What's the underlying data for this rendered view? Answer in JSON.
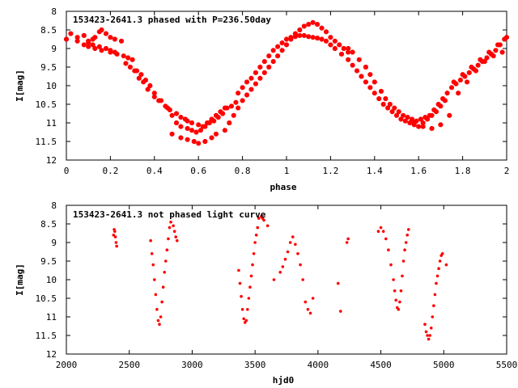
{
  "colors": {
    "series": "#ff0000",
    "axis": "#000000",
    "background": "#ffffff"
  },
  "chart_data": [
    {
      "type": "scatter",
      "title": "153423-2641.3 phased with P=236.50day",
      "xlabel": "phase",
      "ylabel": "I[mag]",
      "xlim": [
        0,
        2
      ],
      "ylim": [
        8,
        12
      ],
      "y_inverted": true,
      "xticks": [
        0,
        0.2,
        0.4,
        0.6,
        0.8,
        1,
        1.2,
        1.4,
        1.6,
        1.8,
        2
      ],
      "xtick_labels": [
        "0",
        "0.2",
        "0.4",
        "0.6",
        "0.8",
        "1",
        "1.2",
        "1.4",
        "1.6",
        "1.8",
        "2"
      ],
      "yticks": [
        8,
        8.5,
        9,
        9.5,
        10,
        10.5,
        11,
        11.5,
        12
      ],
      "ytick_labels": [
        "8",
        "8.5",
        "9",
        "9.5",
        "10",
        "10.5",
        "11",
        "11.5",
        "12"
      ],
      "grid": false,
      "marker": "filled-octagon",
      "series": [
        {
          "x": [
            0.0,
            0.02,
            0.05,
            0.08,
            0.1,
            0.12,
            0.13,
            0.15,
            0.16,
            0.18,
            0.2,
            0.22,
            0.25,
            0.05,
            0.08,
            0.1,
            0.13,
            0.16,
            0.2,
            0.23,
            0.26,
            0.28,
            0.3,
            0.1,
            0.12,
            0.15,
            0.18,
            0.2,
            0.22,
            0.27,
            0.29,
            0.31,
            0.33,
            0.35,
            0.37,
            0.4,
            0.42,
            0.45,
            0.47,
            0.5,
            0.52,
            0.54,
            0.55,
            0.57,
            0.6,
            0.62,
            0.64,
            0.66,
            0.68,
            0.7,
            0.72,
            0.32,
            0.34,
            0.36,
            0.38,
            0.4,
            0.43,
            0.46,
            0.48,
            0.5,
            0.52,
            0.55,
            0.57,
            0.59,
            0.61,
            0.63,
            0.65,
            0.67,
            0.69,
            0.71,
            0.73,
            0.75,
            0.77,
            0.48,
            0.52,
            0.55,
            0.58,
            0.6,
            0.63,
            0.66,
            0.68,
            0.72,
            0.74,
            0.76,
            0.78,
            0.8,
            0.82,
            0.84,
            0.86,
            0.88,
            0.9,
            0.92,
            0.94,
            0.96,
            0.98,
            1.0,
            1.02,
            1.04,
            1.06,
            1.08,
            1.1,
            1.12,
            1.14,
            1.16,
            1.18,
            1.2,
            1.22,
            1.24,
            1.26,
            1.28,
            0.78,
            0.8,
            0.82,
            0.84,
            0.86,
            0.88,
            0.9,
            0.92,
            0.94,
            0.96,
            0.98,
            1.0,
            1.02,
            1.04,
            1.06,
            1.08,
            1.1,
            1.12,
            1.14,
            1.16,
            1.18,
            1.2,
            1.22,
            1.25,
            1.28,
            1.3,
            1.32,
            1.34,
            1.36,
            1.38,
            1.4,
            1.42,
            1.44,
            1.46,
            1.48,
            1.5,
            1.52,
            1.54,
            1.56,
            1.58,
            1.6,
            1.62,
            1.64,
            1.66,
            1.68,
            1.7,
            1.72,
            1.28,
            1.3,
            1.33,
            1.36,
            1.38,
            1.4,
            1.43,
            1.45,
            1.47,
            1.49,
            1.51,
            1.53,
            1.55,
            1.57,
            1.59,
            1.61,
            1.63,
            1.65,
            1.67,
            1.69,
            1.71,
            1.73,
            1.75,
            1.77,
            1.79,
            1.81,
            1.83,
            1.85,
            1.87,
            1.89,
            1.91,
            1.93,
            1.95,
            1.97,
            1.99,
            1.58,
            1.62,
            1.66,
            1.7,
            1.74,
            1.78,
            1.82,
            1.86,
            1.9,
            1.94,
            1.98,
            1.76,
            1.8,
            1.84,
            1.88,
            1.92,
            1.96,
            2.0
          ],
          "y": [
            8.75,
            8.6,
            8.7,
            8.65,
            8.8,
            8.75,
            8.7,
            8.55,
            8.5,
            8.6,
            8.7,
            8.75,
            8.8,
            8.8,
            8.9,
            8.95,
            9.0,
            9.05,
            9.1,
            9.15,
            9.2,
            9.25,
            9.3,
            8.85,
            8.9,
            8.95,
            9.0,
            9.05,
            9.1,
            9.4,
            9.5,
            9.6,
            9.8,
            9.9,
            10.1,
            10.3,
            10.4,
            10.55,
            10.65,
            10.75,
            10.85,
            10.9,
            10.95,
            11.0,
            11.05,
            11.1,
            11.0,
            10.9,
            10.8,
            10.7,
            10.6,
            9.6,
            9.7,
            9.85,
            10.0,
            10.2,
            10.4,
            10.6,
            10.8,
            11.0,
            11.1,
            11.15,
            11.2,
            11.25,
            11.2,
            11.1,
            11.0,
            10.95,
            10.85,
            10.75,
            10.6,
            10.55,
            10.45,
            11.3,
            11.4,
            11.45,
            11.5,
            11.55,
            11.5,
            11.4,
            11.3,
            11.2,
            11.0,
            10.8,
            10.6,
            10.4,
            10.25,
            10.1,
            9.95,
            9.8,
            9.65,
            9.5,
            9.35,
            9.2,
            9.05,
            8.9,
            8.75,
            8.6,
            8.5,
            8.4,
            8.35,
            8.3,
            8.35,
            8.45,
            8.55,
            8.7,
            8.8,
            8.9,
            9.0,
            9.1,
            10.2,
            10.05,
            9.9,
            9.8,
            9.65,
            9.5,
            9.35,
            9.2,
            9.05,
            8.95,
            8.85,
            8.75,
            8.7,
            8.68,
            8.65,
            8.65,
            8.68,
            8.7,
            8.72,
            8.75,
            8.8,
            8.9,
            9.0,
            9.15,
            9.3,
            9.45,
            9.6,
            9.75,
            9.9,
            10.05,
            10.2,
            10.35,
            10.5,
            10.6,
            10.7,
            10.8,
            10.9,
            10.95,
            11.0,
            11.05,
            11.1,
            11.0,
            10.9,
            10.8,
            10.7,
            10.55,
            10.4,
            9.0,
            9.1,
            9.3,
            9.5,
            9.7,
            9.9,
            10.15,
            10.35,
            10.5,
            10.6,
            10.7,
            10.8,
            10.85,
            10.9,
            10.95,
            10.9,
            10.85,
            10.8,
            10.65,
            10.5,
            10.35,
            10.2,
            10.05,
            9.95,
            9.85,
            9.75,
            9.65,
            9.55,
            9.45,
            9.35,
            9.25,
            9.15,
            9.05,
            8.9,
            8.75,
            11.0,
            11.1,
            11.15,
            11.05,
            10.8,
            10.2,
            9.9,
            9.6,
            9.35,
            9.2,
            9.1,
            9.9,
            9.7,
            9.5,
            9.3,
            9.1,
            8.9,
            8.7
          ]
        }
      ]
    },
    {
      "type": "scatter",
      "title": "153423-2641.3 not phased light curve",
      "xlabel": "hjd0",
      "ylabel": "I[mag]",
      "xlim": [
        2000,
        5500
      ],
      "ylim": [
        8,
        12
      ],
      "y_inverted": true,
      "xticks": [
        2000,
        2500,
        3000,
        3500,
        4000,
        4500,
        5000,
        5500
      ],
      "xtick_labels": [
        "2000",
        "2500",
        "3000",
        "3500",
        "4000",
        "4500",
        "5000",
        "5500"
      ],
      "yticks": [
        8,
        8.5,
        9,
        9.5,
        10,
        10.5,
        11,
        11.5,
        12
      ],
      "ytick_labels": [
        "8",
        "8.5",
        "9",
        "9.5",
        "10",
        "10.5",
        "11",
        "11.5",
        "12"
      ],
      "grid": false,
      "marker": "small-dot",
      "series": [
        {
          "x": [
            2375,
            2380,
            2385,
            2390,
            2395,
            2400,
            2670,
            2680,
            2690,
            2700,
            2710,
            2720,
            2730,
            2740,
            2750,
            2760,
            2770,
            2780,
            2790,
            2800,
            2810,
            2820,
            2830,
            2850,
            2860,
            2870,
            2880,
            3370,
            3380,
            3390,
            3400,
            3410,
            3420,
            3430,
            3440,
            3450,
            3460,
            3470,
            3480,
            3490,
            3500,
            3510,
            3520,
            3530,
            3550,
            3560,
            3570,
            3600,
            3650,
            3700,
            3720,
            3740,
            3760,
            3780,
            3800,
            3820,
            3840,
            3860,
            3880,
            3900,
            3920,
            3940,
            3960,
            4160,
            4180,
            4230,
            4240,
            4480,
            4500,
            4520,
            4540,
            4560,
            4580,
            4600,
            4610,
            4620,
            4630,
            4640,
            4650,
            4660,
            4670,
            4680,
            4690,
            4700,
            4710,
            4720,
            4850,
            4860,
            4870,
            4880,
            4890,
            4900,
            4910,
            4920,
            4930,
            4940,
            4950,
            4960,
            4970,
            4980,
            4990,
            5020
          ],
          "y": [
            8.8,
            8.65,
            8.7,
            8.85,
            9.0,
            9.1,
            8.95,
            9.3,
            9.6,
            10.0,
            10.4,
            10.8,
            11.1,
            11.2,
            11.0,
            10.6,
            10.2,
            9.8,
            9.5,
            9.2,
            8.9,
            8.6,
            8.45,
            8.55,
            8.7,
            8.85,
            8.95,
            9.75,
            10.1,
            10.45,
            10.8,
            11.05,
            11.15,
            11.1,
            10.8,
            10.5,
            10.2,
            9.9,
            9.6,
            9.3,
            9.0,
            8.8,
            8.6,
            8.35,
            8.3,
            8.35,
            8.4,
            8.55,
            10.0,
            9.8,
            9.65,
            9.45,
            9.25,
            9.0,
            8.85,
            9.05,
            9.3,
            9.6,
            10.0,
            10.6,
            10.8,
            10.9,
            10.5,
            10.1,
            10.85,
            9.0,
            8.9,
            8.7,
            8.6,
            8.7,
            8.9,
            9.2,
            9.6,
            10.0,
            10.3,
            10.55,
            10.75,
            10.8,
            10.6,
            10.3,
            9.9,
            9.5,
            9.2,
            9.0,
            8.8,
            8.65,
            11.2,
            11.4,
            11.5,
            11.6,
            11.5,
            11.3,
            11.0,
            10.7,
            10.4,
            10.1,
            9.9,
            9.7,
            9.5,
            9.35,
            9.3,
            9.6
          ]
        }
      ]
    }
  ]
}
